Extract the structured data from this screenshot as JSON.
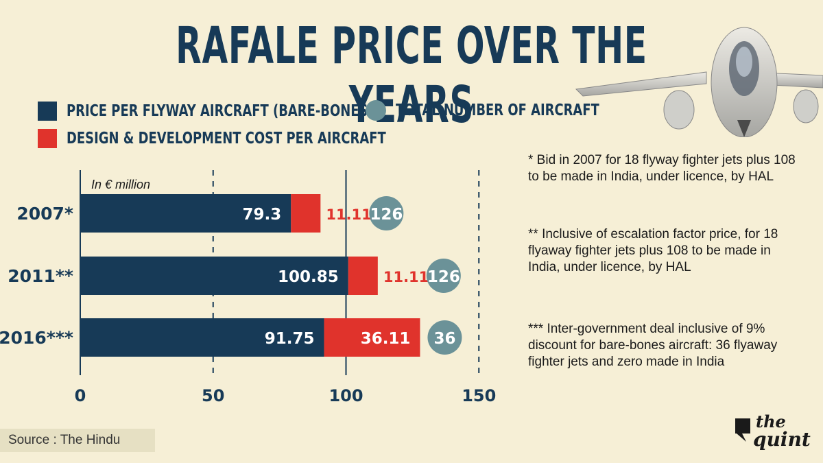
{
  "title": "RAFALE PRICE OVER THE YEARS",
  "legend": {
    "price": "PRICE PER FLYWAY AIRCRAFT (BARE-BONES)",
    "design": "DESIGN & DEVELOPMENT COST PER AIRCRAFT",
    "total": "TOTAL NUMBER OF AIRCRAFT"
  },
  "colors": {
    "price": "#173a57",
    "design": "#e0332c",
    "total": "#6b9298",
    "background": "#f6efd6"
  },
  "chart_data": {
    "type": "bar",
    "orientation": "horizontal",
    "stacked": true,
    "unit_label": "In € million",
    "categories": [
      "2007*",
      "2011**",
      "2016***"
    ],
    "series": [
      {
        "name": "PRICE PER FLYWAY AIRCRAFT (BARE-BONES)",
        "values": [
          79.3,
          100.85,
          91.75
        ],
        "labels": [
          "79.3",
          "100.85",
          "91.75"
        ]
      },
      {
        "name": "DESIGN & DEVELOPMENT COST PER AIRCRAFT",
        "values": [
          11.11,
          11.11,
          36.11
        ],
        "labels": [
          "11.11",
          "11.11",
          "36.11"
        ]
      }
    ],
    "total_aircraft": [
      126,
      126,
      36
    ],
    "xlim": [
      0,
      150
    ],
    "xticks": [
      0,
      50,
      100,
      150
    ],
    "grid": "dashed at 50 and 150"
  },
  "notes": [
    "* Bid in 2007 for 18 flyway fighter jets plus 108 to be made in India, under licence, by HAL",
    "** Inclusive of escalation factor price, for 18 flyaway fighter jets plus 108 to be made in India, under licence, by HAL",
    "*** Inter-government deal inclusive of 9% discount for bare-bones aircraft: 36 flyaway fighter jets and zero made in India"
  ],
  "source": "Source : The Hindu",
  "brand": {
    "the": "the",
    "quint": "quint"
  }
}
